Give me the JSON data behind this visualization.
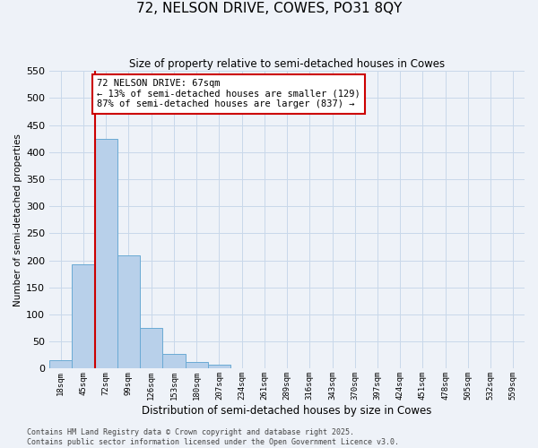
{
  "title": "72, NELSON DRIVE, COWES, PO31 8QY",
  "subtitle": "Size of property relative to semi-detached houses in Cowes",
  "xlabel": "Distribution of semi-detached houses by size in Cowes",
  "ylabel": "Number of semi-detached properties",
  "bar_values": [
    15,
    193,
    425,
    210,
    76,
    27,
    12,
    8,
    1,
    0,
    0,
    0,
    0,
    0,
    0,
    0,
    0,
    0,
    0,
    0,
    0
  ],
  "bar_labels": [
    "18sqm",
    "45sqm",
    "72sqm",
    "99sqm",
    "126sqm",
    "153sqm",
    "180sqm",
    "207sqm",
    "234sqm",
    "261sqm",
    "289sqm",
    "316sqm",
    "343sqm",
    "370sqm",
    "397sqm",
    "424sqm",
    "451sqm",
    "478sqm",
    "505sqm",
    "532sqm",
    "559sqm"
  ],
  "bar_color": "#b8d0ea",
  "bar_edge_color": "#6aaad4",
  "annotation_text_line1": "72 NELSON DRIVE: 67sqm",
  "annotation_text_line2": "← 13% of semi-detached houses are smaller (129)",
  "annotation_text_line3": "87% of semi-detached houses are larger (837) →",
  "annotation_box_color": "#ffffff",
  "annotation_box_edge_color": "#cc0000",
  "vline_color": "#cc0000",
  "ylim": [
    0,
    550
  ],
  "yticks": [
    0,
    50,
    100,
    150,
    200,
    250,
    300,
    350,
    400,
    450,
    500,
    550
  ],
  "grid_color": "#c8d8ea",
  "bg_color": "#eef2f8",
  "footer_line1": "Contains HM Land Registry data © Crown copyright and database right 2025.",
  "footer_line2": "Contains public sector information licensed under the Open Government Licence v3.0."
}
